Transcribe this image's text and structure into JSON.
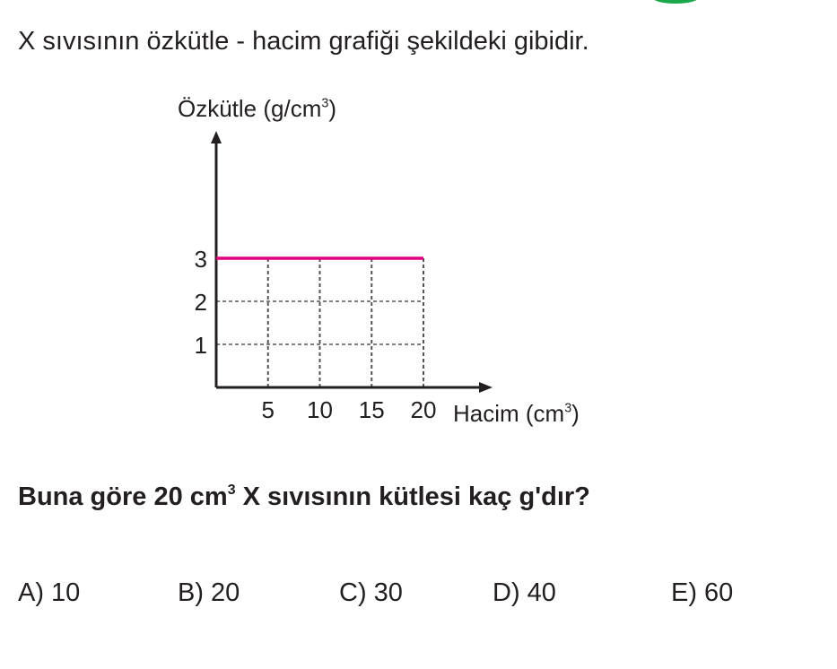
{
  "intro": "X sıvısının özkütle - hacim grafiği şekildeki gibidir.",
  "question": {
    "before": "Buna göre 20 cm",
    "sup": "3",
    "after": " X sıvısının kütlesi kaç g'dır?"
  },
  "options": [
    "A) 10",
    "B) 20",
    "C) 30",
    "D) 40",
    "E) 60"
  ],
  "chart_data": {
    "type": "line",
    "title": "",
    "ylabel": {
      "text": "Özkütle (g/cm",
      "sup": "3",
      "close": ")"
    },
    "xlabel": {
      "text": "Hacim (cm",
      "sup": "3",
      "close": ")"
    },
    "xticks": [
      "5",
      "10",
      "15",
      "20"
    ],
    "yticks": [
      "1",
      "2",
      "3"
    ],
    "xlim": [
      0,
      20
    ],
    "ylim": [
      0,
      3
    ],
    "grid": "dashed",
    "series": [
      {
        "x": [
          0,
          20
        ],
        "y": [
          3,
          3
        ],
        "color": "#e5007e"
      }
    ]
  }
}
